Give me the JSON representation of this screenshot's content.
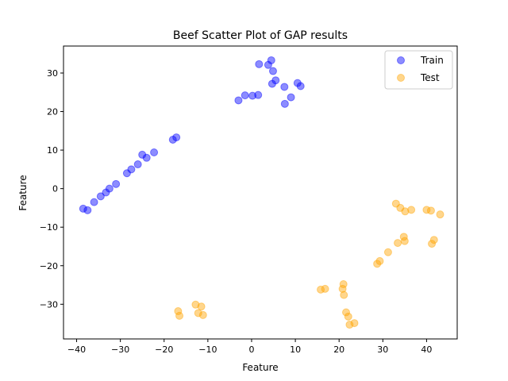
{
  "chart_data": {
    "type": "scatter",
    "title": "Beef Scatter Plot of GAP results",
    "xlabel": "Feature",
    "ylabel": "Feature",
    "xlim": [
      -43,
      47
    ],
    "ylim": [
      -39,
      37
    ],
    "xticks": [
      -40,
      -30,
      -20,
      -10,
      0,
      10,
      20,
      30,
      40
    ],
    "yticks": [
      -30,
      -20,
      -10,
      0,
      10,
      20,
      30
    ],
    "grid": false,
    "legend_position": "top-right",
    "series": [
      {
        "name": "Train",
        "color": "#0000ff",
        "points": [
          [
            -38.5,
            -5.2
          ],
          [
            -37.5,
            -5.6
          ],
          [
            -36,
            -3.5
          ],
          [
            -34.5,
            -2
          ],
          [
            -33.3,
            -1
          ],
          [
            -32.5,
            0
          ],
          [
            -31,
            1.2
          ],
          [
            -28.5,
            4
          ],
          [
            -27.5,
            5
          ],
          [
            -26,
            6.3
          ],
          [
            -25,
            8.8
          ],
          [
            -24,
            8
          ],
          [
            -22.3,
            9.4
          ],
          [
            -18,
            12.7
          ],
          [
            -17.2,
            13.3
          ],
          [
            -3,
            22.9
          ],
          [
            -1.5,
            24.2
          ],
          [
            0.2,
            24.1
          ],
          [
            1.5,
            24.3
          ],
          [
            1.7,
            32.3
          ],
          [
            3.8,
            32.1
          ],
          [
            4.5,
            33.3
          ],
          [
            4.7,
            27.2
          ],
          [
            4.9,
            30.5
          ],
          [
            5.5,
            28.1
          ],
          [
            7.5,
            26.4
          ],
          [
            7.6,
            22
          ],
          [
            9,
            23.7
          ],
          [
            10.5,
            27.4
          ],
          [
            11.2,
            26.6
          ]
        ]
      },
      {
        "name": "Test",
        "color": "#ffa500",
        "points": [
          [
            -16.8,
            -31.8
          ],
          [
            -16.5,
            -33
          ],
          [
            -12.8,
            -30.1
          ],
          [
            -12.2,
            -32.3
          ],
          [
            -11.5,
            -30.6
          ],
          [
            -11.1,
            -32.8
          ],
          [
            15.8,
            -26.2
          ],
          [
            16.8,
            -26
          ],
          [
            20.8,
            -26
          ],
          [
            21,
            -24.8
          ],
          [
            21.1,
            -27.6
          ],
          [
            21.6,
            -32.1
          ],
          [
            22.1,
            -33.2
          ],
          [
            22.4,
            -35.3
          ],
          [
            23.5,
            -34.9
          ],
          [
            28.7,
            -19.5
          ],
          [
            29.3,
            -18.8
          ],
          [
            31.2,
            -16.5
          ],
          [
            33,
            -3.9
          ],
          [
            33.4,
            -14.1
          ],
          [
            34,
            -5
          ],
          [
            34.8,
            -12.5
          ],
          [
            35,
            -13.6
          ],
          [
            35.1,
            -5.9
          ],
          [
            36.5,
            -5.5
          ],
          [
            40,
            -5.5
          ],
          [
            41,
            -5.7
          ],
          [
            41.2,
            -14.3
          ],
          [
            41.7,
            -13.3
          ],
          [
            43.1,
            -6.7
          ]
        ]
      }
    ]
  }
}
